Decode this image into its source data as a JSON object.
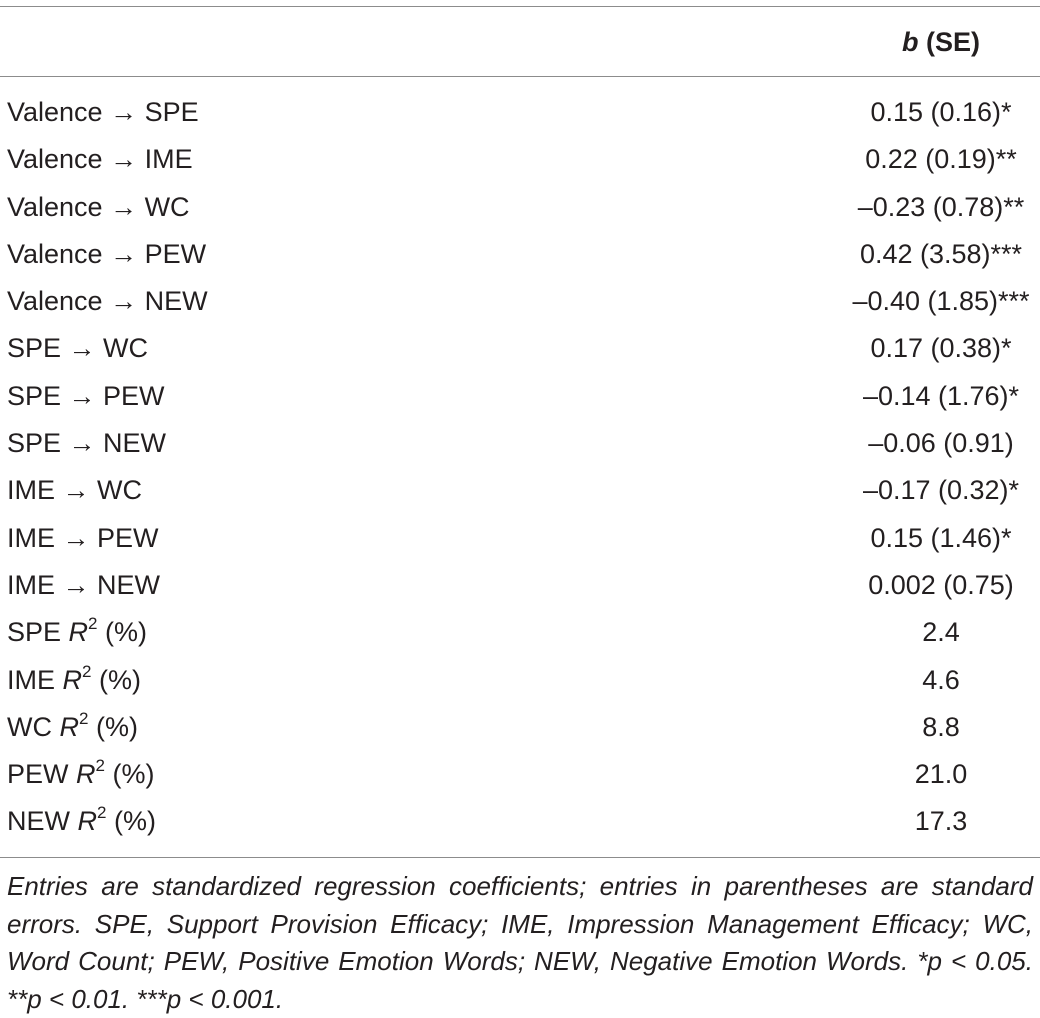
{
  "table": {
    "header": {
      "b_label": "b",
      "se_label": " (SE)"
    },
    "rows": [
      {
        "label": "Valence → SPE",
        "value": "0.15 (0.16)*"
      },
      {
        "label": "Valence → IME",
        "value": "0.22 (0.19)**"
      },
      {
        "label": "Valence → WC",
        "value": "–0.23 (0.78)**"
      },
      {
        "label": "Valence → PEW",
        "value": "0.42 (3.58)***"
      },
      {
        "label": "Valence → NEW",
        "value": "–0.40 (1.85)***"
      },
      {
        "label": "SPE → WC",
        "value": "0.17 (0.38)*"
      },
      {
        "label": "SPE → PEW",
        "value": "–0.14 (1.76)*"
      },
      {
        "label": "SPE → NEW",
        "value": "–0.06 (0.91)"
      },
      {
        "label": "IME → WC",
        "value": "–0.17 (0.32)*"
      },
      {
        "label": "IME → PEW",
        "value": "0.15 (1.46)*"
      },
      {
        "label": "IME → NEW",
        "value": "0.002 (0.75)"
      }
    ],
    "r2_rows": [
      {
        "prefix": "SPE ",
        "r": "R",
        "sup": "2",
        "suffix": " (%)",
        "value": "2.4"
      },
      {
        "prefix": "IME ",
        "r": "R",
        "sup": "2",
        "suffix": " (%)",
        "value": "4.6"
      },
      {
        "prefix": "WC ",
        "r": "R",
        "sup": "2",
        "suffix": " (%)",
        "value": "8.8"
      },
      {
        "prefix": "PEW ",
        "r": "R",
        "sup": "2",
        "suffix": " (%)",
        "value": "21.0"
      },
      {
        "prefix": "NEW ",
        "r": "R",
        "sup": "2",
        "suffix": " (%)",
        "value": "17.3"
      }
    ],
    "footnote": "Entries are standardized regression coefficients; entries in parentheses are standard errors. SPE, Support Provision Efficacy; IME, Impression Management Efficacy; WC, Word Count; PEW, Positive Emotion Words; NEW, Negative Emotion Words. *p < 0.05. **p < 0.01. ***p < 0.001."
  }
}
